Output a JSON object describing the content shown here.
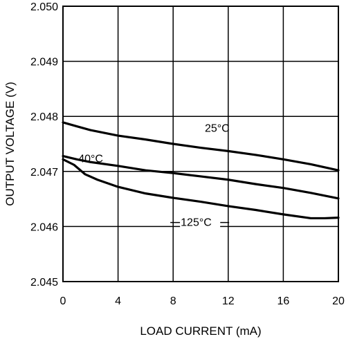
{
  "chart_data": {
    "type": "line",
    "title": "",
    "xlabel": "LOAD CURRENT (mA)",
    "ylabel": "OUTPUT VOLTAGE (V)",
    "xlim": [
      0,
      20
    ],
    "ylim": [
      2.045,
      2.05
    ],
    "xticks": [
      "0",
      "4",
      "8",
      "12",
      "16",
      "20"
    ],
    "yticks": [
      "2.045",
      "2.046",
      "2.047",
      "2.048",
      "2.049",
      "2.050"
    ],
    "grid": true,
    "legend": "none",
    "annotations": [
      {
        "text": "25°C",
        "x": 10.3,
        "y": 2.04772
      },
      {
        "text": "-40°C",
        "x": 0.85,
        "y": 2.04717
      },
      {
        "text": "125°C",
        "x": 8.55,
        "y": 2.04601
      }
    ],
    "series": [
      {
        "label": "25°C",
        "x": [
          0,
          1,
          2,
          4,
          6,
          8,
          10,
          12,
          14,
          16,
          18,
          20
        ],
        "y": [
          2.04789,
          2.04782,
          2.04775,
          2.04765,
          2.04758,
          2.0475,
          2.04743,
          2.04737,
          2.0473,
          2.04722,
          2.04713,
          2.04702
        ]
      },
      {
        "label": "-40°C",
        "x": [
          0,
          1,
          2,
          4,
          6,
          8,
          10,
          12,
          14,
          16,
          18,
          20
        ],
        "y": [
          2.04728,
          2.04722,
          2.04717,
          2.0471,
          2.04702,
          2.04697,
          2.04691,
          2.04685,
          2.04677,
          2.0467,
          2.04661,
          2.04651
        ]
      },
      {
        "label": "125°C",
        "x": [
          0,
          0.8,
          1.6,
          2.5,
          4,
          6,
          8,
          10,
          12,
          14,
          16,
          18,
          19,
          20
        ],
        "y": [
          2.04722,
          2.04712,
          2.04695,
          2.04685,
          2.04672,
          2.0466,
          2.04652,
          2.04645,
          2.04637,
          2.0463,
          2.04622,
          2.04615,
          2.04615,
          2.04616
        ]
      }
    ]
  }
}
